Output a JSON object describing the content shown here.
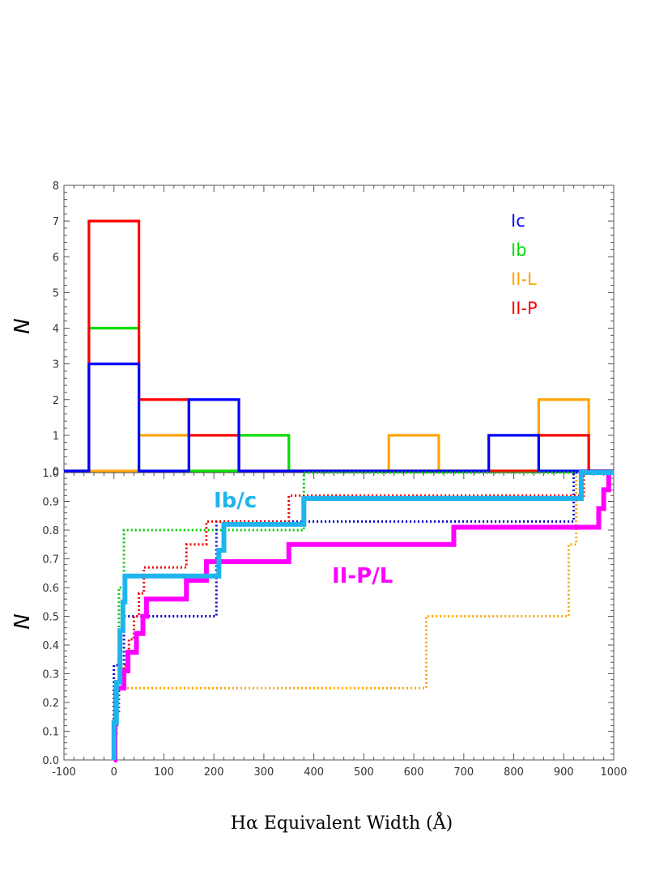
{
  "chart_data": [
    {
      "type": "histogram",
      "ylabel": "N",
      "xlim": [
        -100,
        1000
      ],
      "ylim": [
        0,
        8
      ],
      "bin_edges": [
        -50,
        50,
        150,
        250,
        350,
        450,
        550,
        650,
        750,
        850,
        950,
        1050
      ],
      "legend_position": "top-right",
      "series": [
        {
          "name": "Ic",
          "color": "#0000ff",
          "counts": [
            3,
            0,
            2,
            0,
            0,
            0,
            0,
            0,
            1,
            0,
            0
          ]
        },
        {
          "name": "Ib",
          "color": "#00dd00",
          "counts": [
            4,
            0,
            0,
            1,
            0,
            0,
            0,
            0,
            0,
            0,
            0
          ]
        },
        {
          "name": "II-L",
          "color": "#ffa500",
          "counts": [
            0,
            1,
            0,
            0,
            0,
            0,
            1,
            0,
            0,
            2,
            0
          ]
        },
        {
          "name": "II-P",
          "color": "#ff0000",
          "counts": [
            7,
            2,
            1,
            0,
            0,
            0,
            0,
            0,
            0,
            1,
            0
          ]
        }
      ],
      "yticks": [
        "0",
        "1",
        "2",
        "3",
        "4",
        "5",
        "6",
        "7",
        "8"
      ]
    },
    {
      "type": "line",
      "subtype": "cumulative-step",
      "ylabel": "N",
      "xlabel": "Hα Equivalent Width (Å)",
      "xlim": [
        -100,
        1000
      ],
      "ylim": [
        0,
        1
      ],
      "annotations": [
        {
          "text": "Ib/c",
          "color": "#1fb4ee"
        },
        {
          "text": "II-P/L",
          "color": "#ff00ff"
        }
      ],
      "series": [
        {
          "label": "Ib/c",
          "color": "#1fb4ee",
          "style": "thick",
          "x": [
            0,
            5,
            12,
            18,
            22,
            200,
            210,
            220,
            380,
            935,
            1000
          ],
          "y": [
            0.13,
            0.27,
            0.45,
            0.55,
            0.64,
            0.64,
            0.73,
            0.82,
            0.91,
            1.0,
            1.0
          ]
        },
        {
          "label": "II-P/L",
          "color": "#ff00ff",
          "style": "thick",
          "x": [
            0,
            2,
            4,
            10,
            20,
            28,
            45,
            58,
            65,
            145,
            185,
            350,
            680,
            970,
            980,
            990
          ],
          "y": [
            0.0,
            0.125,
            0.25,
            0.25,
            0.31,
            0.375,
            0.44,
            0.5,
            0.56,
            0.625,
            0.69,
            0.75,
            0.81,
            0.875,
            0.94,
            1.0
          ]
        },
        {
          "label": "Ic",
          "color": "#0000cc",
          "style": "dotted",
          "x": [
            0,
            10,
            20,
            195,
            205,
            920,
            1000
          ],
          "y": [
            0.33,
            0.33,
            0.5,
            0.5,
            0.83,
            1.0,
            1.0
          ]
        },
        {
          "label": "Ib",
          "color": "#00cc00",
          "style": "dotted",
          "x": [
            0,
            10,
            20,
            380,
            1000
          ],
          "y": [
            0.2,
            0.6,
            0.8,
            1.0,
            1.0
          ]
        },
        {
          "label": "II-L",
          "color": "#ffa500",
          "style": "dotted",
          "x": [
            0,
            625,
            910,
            925,
            1000
          ],
          "y": [
            0.25,
            0.5,
            0.75,
            1.0,
            1.0
          ]
        },
        {
          "label": "II-P",
          "color": "#ee0000",
          "style": "dotted",
          "x": [
            0,
            5,
            10,
            20,
            30,
            40,
            50,
            60,
            90,
            145,
            185,
            350,
            940,
            1000
          ],
          "y": [
            0.083,
            0.17,
            0.25,
            0.33,
            0.42,
            0.5,
            0.58,
            0.67,
            0.67,
            0.75,
            0.83,
            0.92,
            1.0,
            1.0
          ]
        }
      ],
      "xticks": [
        "-100",
        "0",
        "100",
        "200",
        "300",
        "400",
        "500",
        "600",
        "700",
        "800",
        "900",
        "1000"
      ],
      "yticks": [
        "0.0",
        "0.1",
        "0.2",
        "0.3",
        "0.4",
        "0.5",
        "0.6",
        "0.7",
        "0.8",
        "0.9",
        "1.0"
      ]
    }
  ]
}
